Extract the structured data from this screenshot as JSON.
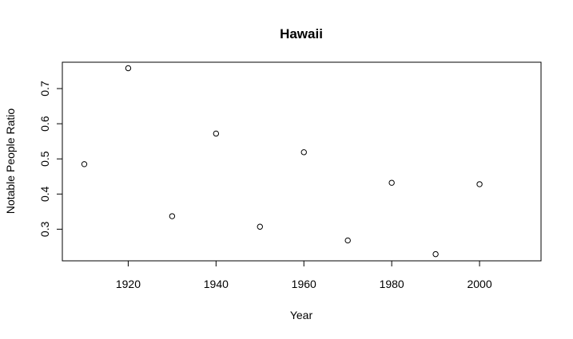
{
  "chart_data": {
    "type": "scatter",
    "title": "Hawaii",
    "xlabel": "Year",
    "ylabel": "Notable People Ratio",
    "x": [
      1910,
      1920,
      1930,
      1940,
      1950,
      1960,
      1970,
      1980,
      1990,
      2000
    ],
    "y": [
      0.485,
      0.758,
      0.337,
      0.572,
      0.307,
      0.519,
      0.268,
      0.432,
      0.229,
      0.428
    ],
    "xlim": [
      1905,
      2014
    ],
    "ylim": [
      0.21,
      0.775
    ],
    "xticks": [
      1920,
      1940,
      1960,
      1980,
      2000
    ],
    "yticks": [
      0.3,
      0.4,
      0.5,
      0.6,
      0.7
    ],
    "xtick_labels": [
      "1920",
      "1940",
      "1960",
      "1980",
      "2000"
    ],
    "ytick_labels": [
      "0.3",
      "0.4",
      "0.5",
      "0.6",
      "0.7"
    ],
    "grid": false,
    "marker": "open-circle"
  }
}
